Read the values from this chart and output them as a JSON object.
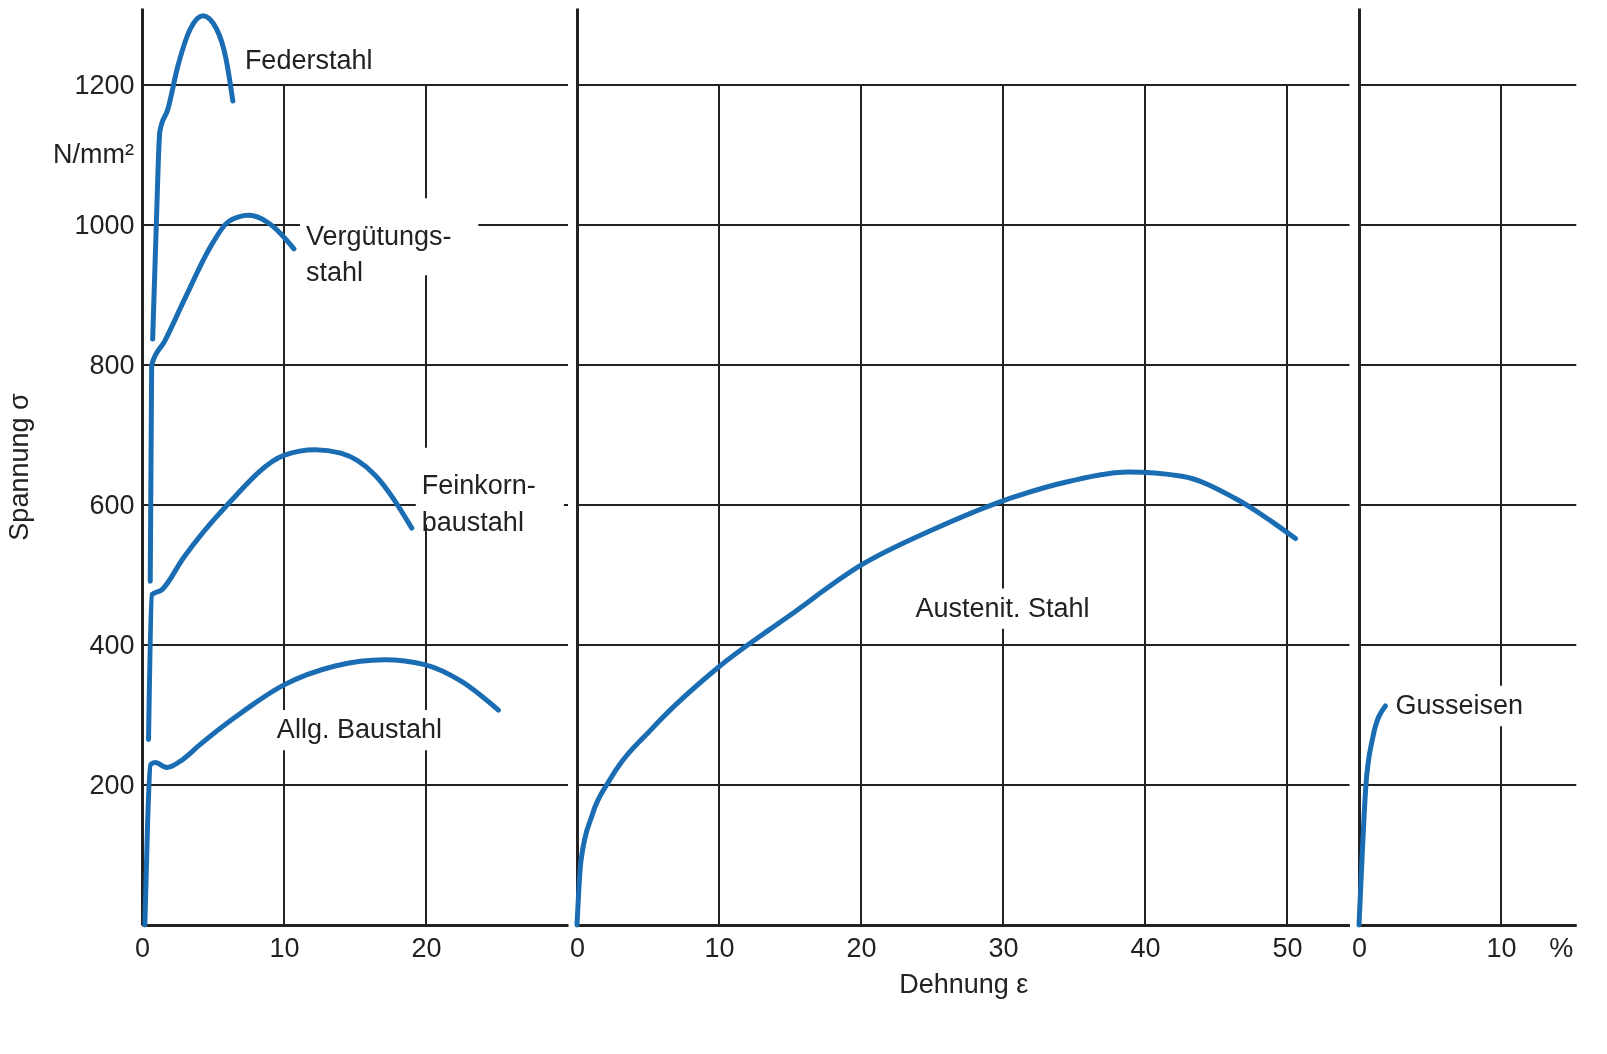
{
  "chart_data": [
    {
      "type": "line",
      "ylabel": "Spannung σ",
      "annotations": [
        "N/mm²"
      ],
      "xlim": [
        0,
        30
      ],
      "ylim": [
        0,
        1310
      ],
      "xticks": [
        0,
        10,
        20
      ],
      "yticks": [
        200,
        400,
        600,
        800,
        1000,
        1200
      ],
      "grid": true,
      "tick_labels": "xy",
      "series": [
        {
          "name": "Federstahl",
          "color": "#1a6db3",
          "x": [
            0.75,
            1.0,
            1.26,
            1.83,
            2.5,
            3.4,
            4.3,
            5.25,
            5.9,
            6.4
          ],
          "values": [
            837,
            996,
            1134,
            1166,
            1225,
            1280,
            1299,
            1280,
            1239,
            1177
          ]
        },
        {
          "name": "Vergütungs-\nstahl",
          "color": "#1a6db3",
          "x": [
            0.58,
            0.68,
            1.6,
            3.0,
            4.8,
            6.1,
            7.5,
            9.1,
            10.7
          ],
          "values": [
            491,
            800,
            834,
            894,
            968,
            1005,
            1014,
            1000,
            966
          ]
        },
        {
          "name": "Feinkorn-\nbaustahl",
          "color": "#1a6db3",
          "x": [
            0.46,
            0.7,
            1.4,
            2.9,
            6.0,
            10.0,
            12.2,
            14.0,
            16.4,
            19.0
          ],
          "values": [
            265,
            472,
            479,
            524,
            600,
            671,
            679,
            674,
            643,
            567
          ]
        },
        {
          "name": "Allg. Baustahl",
          "color": "#1a6db3",
          "x": [
            0.2,
            0.4,
            0.6,
            0.93,
            1.76,
            2.7,
            4.1,
            6.5,
            10.0,
            13.6,
            17.1,
            19.9,
            22.5,
            25.1
          ],
          "values": [
            0,
            150,
            229,
            232,
            225,
            234,
            258,
            296,
            343,
            370,
            379,
            372,
            348,
            307
          ]
        }
      ]
    },
    {
      "type": "line",
      "xlabel": "Dehnung ε",
      "xlim": [
        0,
        54.4
      ],
      "ylim": [
        0,
        1310
      ],
      "xticks": [
        0,
        10,
        20,
        30,
        40,
        50
      ],
      "yticks": [
        200,
        400,
        600,
        800,
        1000,
        1200
      ],
      "grid": true,
      "tick_labels": "x",
      "series": [
        {
          "name": "Austenit. Stahl",
          "color": "#1a6db3",
          "x": [
            0,
            0.27,
            1.1,
            2.3,
            5.4,
            10,
            14.9,
            20,
            25.2,
            30,
            34.7,
            38.8,
            42.6,
            46.3,
            50.6
          ],
          "values": [
            0,
            90,
            159,
            207,
            283,
            369,
            441,
            514,
            566,
            606,
            634,
            647,
            641,
            610,
            552
          ]
        }
      ]
    },
    {
      "type": "line",
      "xlim": [
        0,
        15.3
      ],
      "ylim": [
        0,
        1310
      ],
      "xticks": [
        0,
        10,
        {
          "value": 14.2,
          "label": "%"
        }
      ],
      "yticks": [
        200,
        400,
        600,
        800,
        1000,
        1200
      ],
      "grid": true,
      "tick_labels": "x",
      "series": [
        {
          "name": "Gusseisen",
          "color": "#1a6db3",
          "x": [
            0,
            0.23,
            0.47,
            0.93,
            1.86
          ],
          "values": [
            0,
            103,
            195,
            264,
            313
          ]
        }
      ]
    }
  ]
}
